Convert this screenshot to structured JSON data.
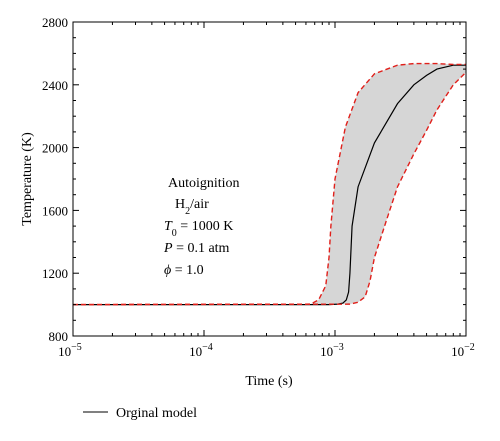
{
  "chart_data": {
    "type": "line",
    "title": "",
    "xlabel": "Time (s)",
    "ylabel": "Temperature (K)",
    "xscale": "log",
    "xlim": [
      1e-05,
      0.01
    ],
    "ylim": [
      800,
      2800
    ],
    "x_ticks": [
      {
        "value": 1e-05,
        "base": "10",
        "exp": "−5"
      },
      {
        "value": 0.0001,
        "base": "10",
        "exp": "−4"
      },
      {
        "value": 0.001,
        "base": "10",
        "exp": "−3"
      },
      {
        "value": 0.01,
        "base": "10",
        "exp": "−2"
      }
    ],
    "y_ticks": [
      800,
      1200,
      1600,
      2000,
      2400,
      2800
    ],
    "grid": false,
    "legend": {
      "position": "bottom-left",
      "entries": [
        "Orginal model"
      ]
    },
    "annotation": {
      "line1": "Autoignition",
      "line2_main": "H",
      "line2_sub": "2",
      "line2_rest": "/air",
      "line3_var": "T",
      "line3_sub": "0",
      "line3_rest": " = 1000 K",
      "line4_var": "P",
      "line4_rest": " = 0.1 atm",
      "line5_var": "ϕ",
      "line5_rest": " = 1.0"
    },
    "series": [
      {
        "name": "Orginal model",
        "style": "solid",
        "color": "#000000",
        "x": [
          1e-05,
          0.0001,
          0.0009,
          0.00105,
          0.00115,
          0.00122,
          0.00127,
          0.0013,
          0.00135,
          0.0015,
          0.002,
          0.003,
          0.004,
          0.005,
          0.006,
          0.008,
          0.01
        ],
        "y": [
          1000,
          1000,
          1000,
          1003,
          1010,
          1030,
          1080,
          1200,
          1500,
          1750,
          2030,
          2280,
          2400,
          2460,
          2500,
          2525,
          2525
        ]
      },
      {
        "name": "",
        "style": "dashed",
        "color": "#e0201b",
        "x": [
          1e-05,
          0.00065,
          0.00075,
          0.00085,
          0.0009,
          0.00093,
          0.001,
          0.0012,
          0.0015,
          0.002,
          0.003,
          0.004,
          0.006,
          0.008,
          0.01
        ],
        "y": [
          1000,
          1003,
          1030,
          1120,
          1300,
          1500,
          1800,
          2130,
          2350,
          2470,
          2525,
          2535,
          2535,
          2530,
          2530
        ]
      },
      {
        "name": "",
        "style": "dashed",
        "color": "#e0201b",
        "x": [
          1e-05,
          0.0013,
          0.0015,
          0.0017,
          0.00185,
          0.002,
          0.0025,
          0.003,
          0.004,
          0.005,
          0.006,
          0.008,
          0.01
        ],
        "y": [
          1000,
          1003,
          1015,
          1050,
          1150,
          1300,
          1550,
          1750,
          1960,
          2110,
          2240,
          2400,
          2480
        ]
      }
    ],
    "band_fill_color": "#d6d6d6"
  }
}
